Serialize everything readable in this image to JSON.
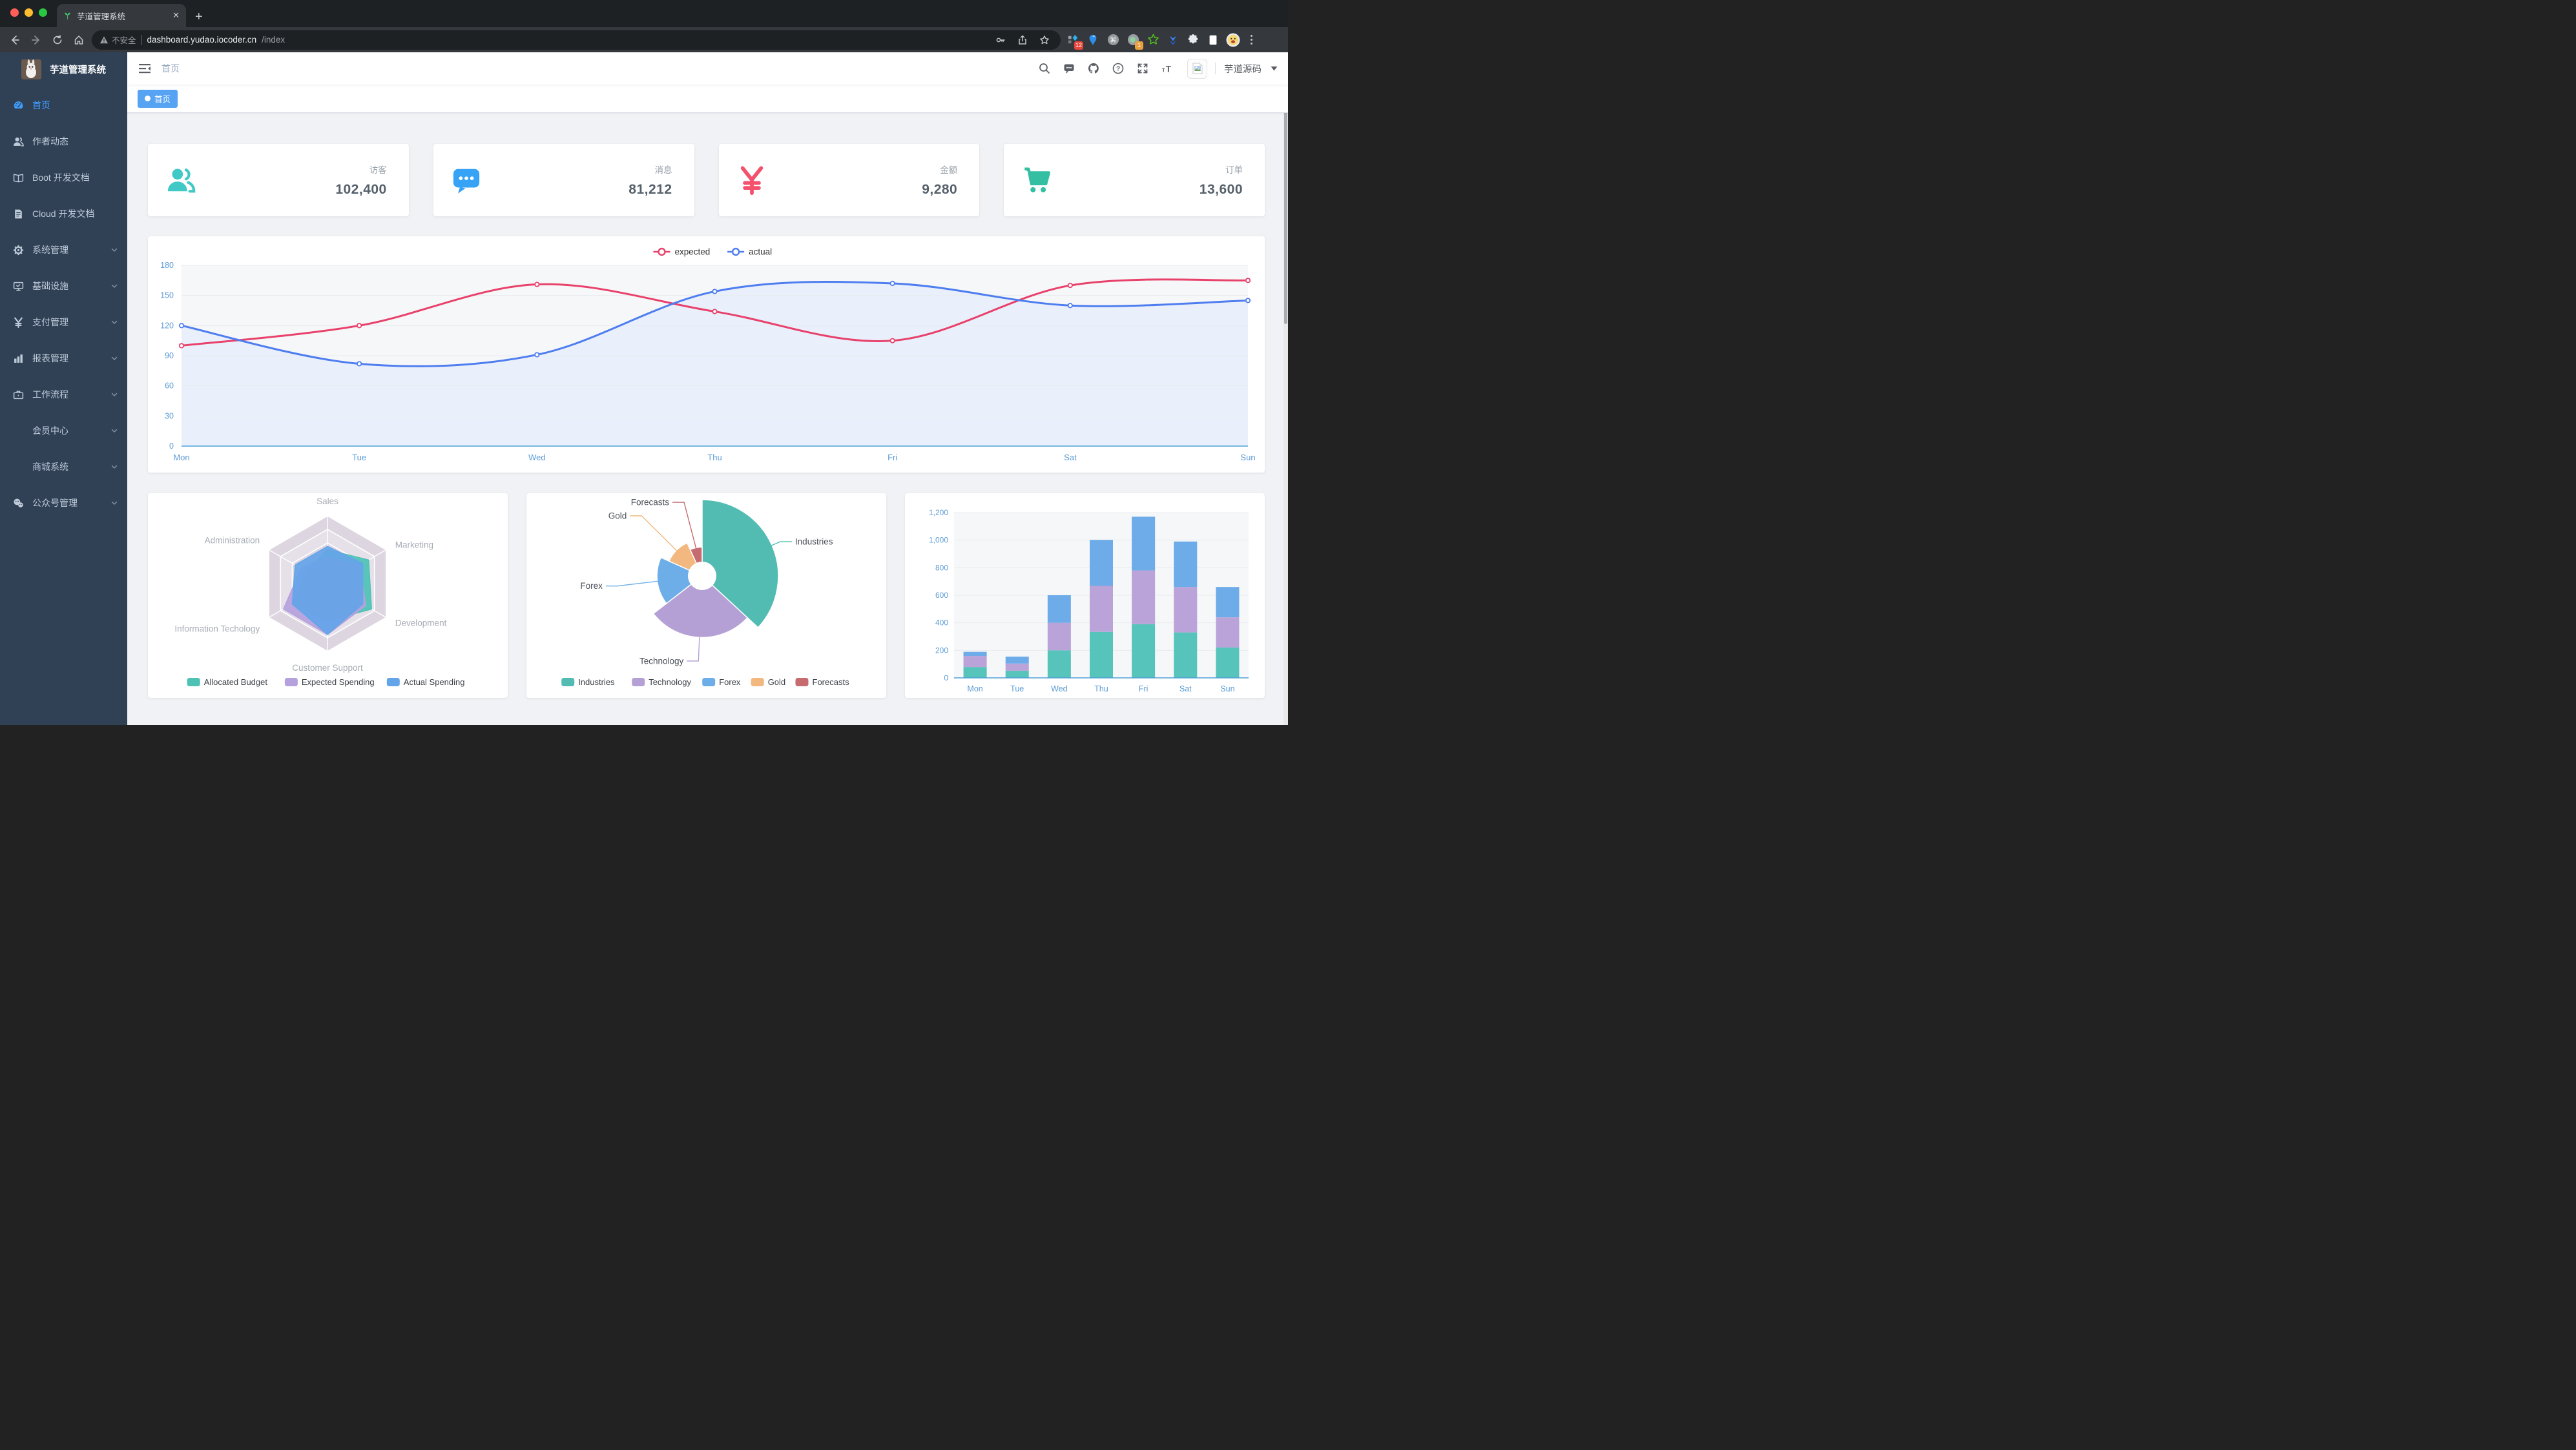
{
  "browser": {
    "tab_title": "芋道管理系统",
    "new_tab_label": "+",
    "security_label": "不安全",
    "url_host": "dashboard.yudao.iocoder.cn",
    "url_path": "/index",
    "extension_badge_a": "12",
    "extension_badge_b": "1"
  },
  "sidebar": {
    "logo_title": "芋道管理系统",
    "items": [
      {
        "id": "home",
        "label": "首页",
        "icon": "dashboard-icon",
        "active": true,
        "arrow": false
      },
      {
        "id": "author-news",
        "label": "作者动态",
        "icon": "peoples-icon",
        "active": false,
        "arrow": false
      },
      {
        "id": "boot-docs",
        "label": "Boot 开发文档",
        "icon": "book-icon",
        "active": false,
        "arrow": false
      },
      {
        "id": "cloud-docs",
        "label": "Cloud 开发文档",
        "icon": "document-icon",
        "active": false,
        "arrow": false
      },
      {
        "id": "system-management",
        "label": "系统管理",
        "icon": "gear-icon",
        "active": false,
        "arrow": true
      },
      {
        "id": "infrastructure",
        "label": "基础设施",
        "icon": "monitor-icon",
        "active": false,
        "arrow": true
      },
      {
        "id": "payment-management",
        "label": "支付管理",
        "icon": "money-icon",
        "active": false,
        "arrow": true
      },
      {
        "id": "report-management",
        "label": "报表管理",
        "icon": "bar-chart-icon",
        "active": false,
        "arrow": true
      },
      {
        "id": "workflow",
        "label": "工作流程",
        "icon": "briefcase-icon",
        "active": false,
        "arrow": true
      },
      {
        "id": "member-center",
        "label": "会员中心",
        "icon": "",
        "active": false,
        "arrow": true
      },
      {
        "id": "mall-system",
        "label": "商城系统",
        "icon": "",
        "active": false,
        "arrow": true
      },
      {
        "id": "official-account",
        "label": "公众号管理",
        "icon": "wechat-icon",
        "active": false,
        "arrow": true
      }
    ]
  },
  "navbar": {
    "breadcrumb": "首页",
    "right_icons": [
      "search-icon",
      "message-icon",
      "github-icon",
      "question-icon",
      "fullscreen-icon",
      "font-size-icon"
    ],
    "user_name": "芋道源码"
  },
  "tags_view": {
    "tags": [
      {
        "label": "首页",
        "active": true
      }
    ]
  },
  "stat_cards": [
    {
      "title": "访客",
      "value": "102,400",
      "icon": "peoples-icon",
      "color": "#40c9c6"
    },
    {
      "title": "消息",
      "value": "81,212",
      "icon": "message-bubble-icon",
      "color": "#36a3f7"
    },
    {
      "title": "金额",
      "value": "9,280",
      "icon": "money-icon",
      "color": "#f4516c"
    },
    {
      "title": "订单",
      "value": "13,600",
      "icon": "shopping-cart-icon",
      "color": "#34bfa3"
    }
  ],
  "chart_data": [
    {
      "id": "line-chart",
      "type": "line",
      "categories": [
        "Mon",
        "Tue",
        "Wed",
        "Thu",
        "Fri",
        "Sat",
        "Sun"
      ],
      "series": [
        {
          "name": "expected",
          "color": "#e8416b",
          "values": [
            100,
            120,
            161,
            134,
            105,
            160,
            165
          ]
        },
        {
          "name": "actual",
          "color": "#4e7df0",
          "values": [
            120,
            82,
            91,
            154,
            162,
            140,
            145
          ],
          "area": true,
          "area_color": "#e9f0fb"
        }
      ],
      "ylim": [
        0,
        180
      ],
      "ytick_step": 30,
      "grid": true,
      "legend_position": "top",
      "plot_bg": "#f6f7f8",
      "axis_color": "#4d9fd8",
      "label_color": "#5b9bd5"
    },
    {
      "id": "radar-chart",
      "type": "radar",
      "levels": 5,
      "start": "top",
      "direction": "clockwise",
      "indicators": [
        {
          "name": "Sales",
          "max": 10000
        },
        {
          "name": "Marketing",
          "max": 20000
        },
        {
          "name": "Development",
          "max": 20000
        },
        {
          "name": "Customer Support",
          "max": 20000
        },
        {
          "name": "Information Techology",
          "max": 20000
        },
        {
          "name": "Administration",
          "max": 20000
        }
      ],
      "series": [
        {
          "name": "Allocated Budget",
          "color": "#4dc2b5",
          "values": [
            5000,
            14000,
            15000,
            11000,
            12000,
            7000
          ]
        },
        {
          "name": "Expected Spending",
          "color": "#b5a1dd",
          "values": [
            4000,
            11000,
            13000,
            15000,
            15000,
            9000
          ]
        },
        {
          "name": "Actual Spending",
          "color": "#64a4e8",
          "values": [
            5500,
            12000,
            12000,
            15000,
            12000,
            11000
          ]
        }
      ],
      "legend_position": "bottom",
      "grid_band_colors": [
        "#ddd6e0",
        "#e6e0e9"
      ],
      "axis_label_color": "#a6acb5"
    },
    {
      "id": "pie-chart",
      "type": "pie",
      "rose_type": "radius",
      "start_angle_deg": 90,
      "direction": "clockwise",
      "slices": [
        {
          "name": "Industries",
          "value": 320,
          "color": "#52bcb2"
        },
        {
          "name": "Technology",
          "value": 240,
          "color": "#b5a0d6"
        },
        {
          "name": "Forex",
          "value": 149,
          "color": "#6daee9"
        },
        {
          "name": "Gold",
          "value": 100,
          "color": "#f2b880"
        },
        {
          "name": "Forecasts",
          "value": 59,
          "color": "#c66b70"
        }
      ],
      "legend_position": "bottom",
      "label_color": "#4a4f57"
    },
    {
      "id": "bar-chart",
      "type": "bar",
      "stacked": true,
      "categories": [
        "Mon",
        "Tue",
        "Wed",
        "Thu",
        "Fri",
        "Sat",
        "Sun"
      ],
      "series": [
        {
          "color": "#56c4ba",
          "values": [
            79,
            52,
            200,
            334,
            390,
            330,
            220
          ]
        },
        {
          "color": "#b9a3d8",
          "values": [
            80,
            52,
            200,
            334,
            390,
            330,
            220
          ]
        },
        {
          "color": "#6dabe9",
          "values": [
            30,
            50,
            200,
            334,
            390,
            330,
            220
          ]
        }
      ],
      "ylim": [
        0,
        1200
      ],
      "ytick_step": 200,
      "plot_bg": "#f6f7f8",
      "axis_color": "#4d9fd8",
      "label_color": "#5b9bd5"
    }
  ],
  "colors": {
    "accent": "#409eff",
    "sidebar_bg": "#304156",
    "sidebar_text": "#bfcbd9",
    "page_bg": "#f0f2f5",
    "tag_active": "#57a3f3"
  }
}
